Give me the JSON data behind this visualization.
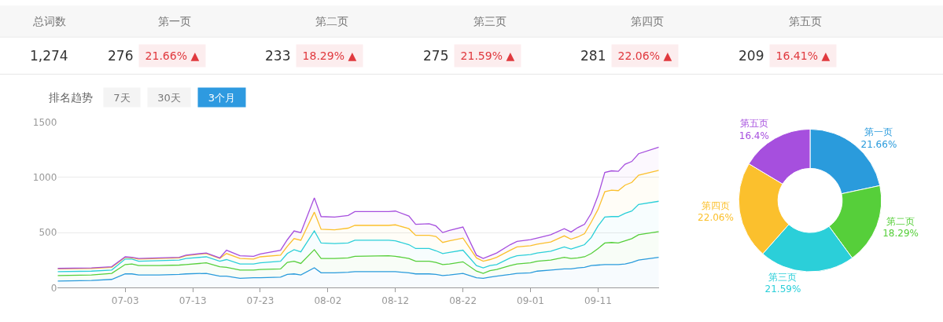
{
  "chart_data": [
    {
      "type": "other",
      "categories": [
        "总词数",
        "第一页",
        "第二页",
        "第三页",
        "第四页",
        "第五页"
      ],
      "series": [
        {
          "color": "#333333",
          "values": [
            1274,
            276,
            233,
            275,
            281,
            209
          ],
          "value_labels": [
            "1,274",
            "276",
            "233",
            "275",
            "281",
            "209"
          ]
        },
        {
          "color": "#e0393e",
          "values": [
            null,
            21.66,
            18.29,
            21.59,
            22.06,
            16.41
          ],
          "value_labels": [
            null,
            "21.66% ▲",
            "18.29% ▲",
            "21.59% ▲",
            "22.06% ▲",
            "16.41% ▲"
          ]
        }
      ]
    },
    {
      "type": "area",
      "stacked": true,
      "title": "排名趋势",
      "annotations": [
        "7天",
        "30天",
        "3个月"
      ],
      "x": [
        "--06-23",
        "--06-28",
        "--07-01",
        "--07-03",
        "--07-04",
        "--07-05",
        "--07-08",
        "--07-11",
        "--07-12",
        "--07-15",
        "--07-17",
        "--07-18",
        "--07-20",
        "--07-22",
        "--07-23",
        "--07-26",
        "--07-27",
        "--07-28",
        "--07-29",
        "--07-31",
        "--08-01",
        "--08-03",
        "--08-05",
        "--08-06",
        "--08-11",
        "--08-12",
        "--08-14",
        "--08-15",
        "--08-17",
        "--08-18",
        "--08-19",
        "--08-20",
        "--08-22",
        "--08-24",
        "--08-25",
        "--08-26",
        "--08-27",
        "--08-29",
        "--08-30",
        "--09-01",
        "--09-02",
        "--09-04",
        "--09-06",
        "--09-07",
        "--09-08",
        "--09-09",
        "--09-10",
        "--09-11",
        "--09-12",
        "--09-13",
        "--09-14",
        "--09-15",
        "--09-16",
        "--09-17",
        "--09-20"
      ],
      "xlim": [
        "--06-23",
        "--09-20"
      ],
      "xticks": [
        {
          "value": "--07-03",
          "label": "07-03"
        },
        {
          "value": "--07-13",
          "label": "07-13"
        },
        {
          "value": "--07-23",
          "label": "07-23"
        },
        {
          "value": "--08-02",
          "label": "08-02"
        },
        {
          "value": "--08-12",
          "label": "08-12"
        },
        {
          "value": "--08-22",
          "label": "08-22"
        },
        {
          "value": "--09-01",
          "label": "09-01"
        },
        {
          "value": "--09-11",
          "label": "09-11"
        }
      ],
      "ylim": [
        0,
        1500
      ],
      "yticks": [
        0,
        500,
        1000,
        1500
      ],
      "grid": "y",
      "series": [
        {
          "color": "#2a9bdc",
          "values": [
            60,
            65,
            75,
            125,
            125,
            115,
            115,
            120,
            125,
            130,
            105,
            105,
            85,
            90,
            90,
            95,
            120,
            125,
            115,
            180,
            135,
            135,
            140,
            145,
            145,
            145,
            135,
            125,
            125,
            120,
            110,
            115,
            130,
            90,
            85,
            95,
            105,
            120,
            130,
            135,
            150,
            160,
            170,
            170,
            180,
            185,
            200,
            205,
            210,
            210,
            210,
            215,
            230,
            250,
            276
          ]
        },
        {
          "color": "#56cf3a",
          "values": [
            50,
            50,
            55,
            85,
            90,
            85,
            85,
            85,
            85,
            95,
            85,
            80,
            75,
            70,
            75,
            75,
            110,
            115,
            105,
            165,
            130,
            130,
            130,
            140,
            145,
            140,
            130,
            115,
            115,
            110,
            100,
            100,
            105,
            60,
            45,
            60,
            60,
            80,
            85,
            90,
            90,
            90,
            105,
            95,
            90,
            95,
            110,
            150,
            195,
            200,
            195,
            210,
            215,
            230,
            233
          ]
        },
        {
          "color": "#2bcfd9",
          "values": [
            35,
            35,
            30,
            50,
            45,
            40,
            45,
            45,
            55,
            55,
            50,
            70,
            55,
            55,
            60,
            70,
            80,
            105,
            105,
            170,
            140,
            135,
            135,
            145,
            140,
            140,
            125,
            115,
            115,
            105,
            100,
            105,
            105,
            50,
            50,
            45,
            45,
            70,
            75,
            75,
            75,
            80,
            95,
            85,
            100,
            110,
            145,
            205,
            235,
            235,
            240,
            250,
            250,
            275,
            275
          ]
        },
        {
          "color": "#fbc02d",
          "values": [
            25,
            25,
            25,
            15,
            10,
            20,
            20,
            20,
            25,
            30,
            25,
            55,
            50,
            45,
            55,
            55,
            65,
            100,
            105,
            170,
            125,
            125,
            135,
            135,
            135,
            145,
            145,
            120,
            120,
            130,
            100,
            105,
            110,
            70,
            60,
            55,
            65,
            70,
            80,
            80,
            80,
            85,
            100,
            90,
            90,
            100,
            140,
            150,
            230,
            240,
            235,
            255,
            260,
            265,
            281
          ]
        },
        {
          "color": "#a64fde",
          "values": [
            5,
            5,
            5,
            5,
            5,
            5,
            5,
            5,
            5,
            5,
            5,
            30,
            25,
            25,
            25,
            45,
            60,
            70,
            70,
            130,
            115,
            115,
            115,
            125,
            125,
            125,
            115,
            100,
            105,
            95,
            90,
            95,
            100,
            25,
            25,
            35,
            40,
            50,
            50,
            55,
            55,
            65,
            65,
            65,
            85,
            85,
            80,
            125,
            175,
            175,
            175,
            190,
            190,
            195,
            209
          ]
        }
      ]
    },
    {
      "type": "donut",
      "categories": [
        "第一页",
        "第二页",
        "第三页",
        "第四页",
        "第五页"
      ],
      "values": [
        21.66,
        18.29,
        21.59,
        22.06,
        16.4
      ],
      "value_labels": [
        "21.66%",
        "18.29%",
        "21.59%",
        "22.06%",
        "16.4%"
      ],
      "colors": [
        "#2a9bdc",
        "#56cf3a",
        "#2bcfd9",
        "#fbc02d",
        "#a64fde"
      ]
    }
  ]
}
